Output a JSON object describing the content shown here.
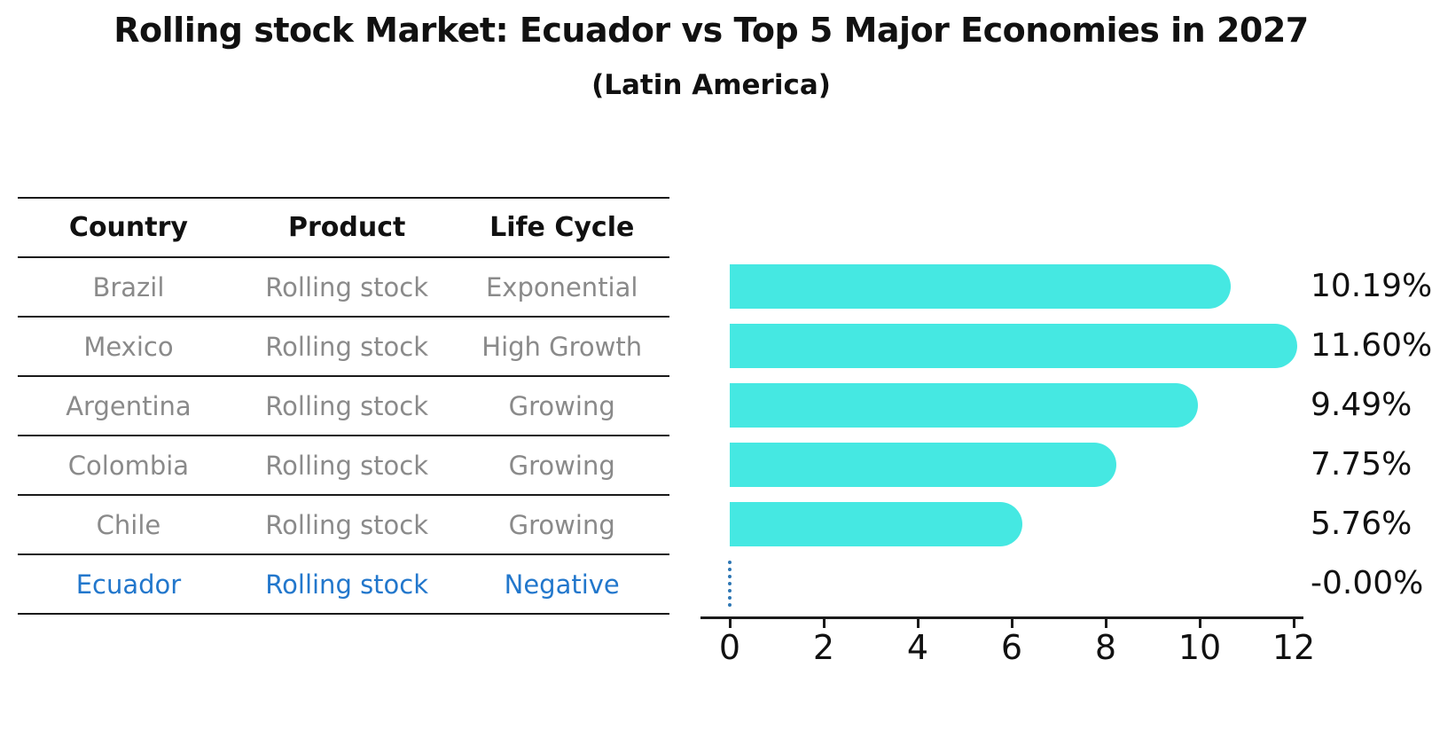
{
  "title": "Rolling stock Market: Ecuador vs Top 5 Major Economies in 2027",
  "subtitle": "(Latin America)",
  "table": {
    "headers": [
      "Country",
      "Product",
      "Life Cycle"
    ],
    "rows": [
      {
        "country": "Brazil",
        "product": "Rolling stock",
        "life_cycle": "Exponential",
        "highlight": false
      },
      {
        "country": "Mexico",
        "product": "Rolling stock",
        "life_cycle": "High Growth",
        "highlight": false
      },
      {
        "country": "Argentina",
        "product": "Rolling stock",
        "life_cycle": "Growing",
        "highlight": false
      },
      {
        "country": "Colombia",
        "product": "Rolling stock",
        "life_cycle": "Growing",
        "highlight": false
      },
      {
        "country": "Chile",
        "product": "Rolling stock",
        "life_cycle": "Growing",
        "highlight": false
      },
      {
        "country": "Ecuador",
        "product": "Rolling stock",
        "life_cycle": "Negative",
        "highlight": true
      }
    ]
  },
  "chart_data": {
    "type": "bar",
    "orientation": "horizontal",
    "title": "Rolling stock Market: Ecuador vs Top 5 Major Economies in 2027",
    "subtitle": "(Latin America)",
    "categories": [
      "Brazil",
      "Mexico",
      "Argentina",
      "Colombia",
      "Chile",
      "Ecuador"
    ],
    "values": [
      10.19,
      11.6,
      9.49,
      7.75,
      5.76,
      -0.0
    ],
    "value_labels": [
      "10.19%",
      "11.60%",
      "9.49%",
      "7.75%",
      "5.76%",
      "-0.00%"
    ],
    "xlim": [
      0,
      12
    ],
    "x_ticks": [
      "0",
      "2",
      "4",
      "6",
      "8",
      "10",
      "12"
    ],
    "grid": false,
    "legend": false,
    "highlight_category": "Ecuador",
    "zero_value_marker": "dotted-line"
  },
  "colors": {
    "bar": "#45e8e2",
    "highlight_text": "#2277cc",
    "zero_marker_line": "#2e77b4",
    "row_text": "#8a8a8a",
    "header_text": "#111111",
    "axis_line": "#1a1a1a",
    "value_text": "#111111",
    "background": "#ffffff"
  }
}
